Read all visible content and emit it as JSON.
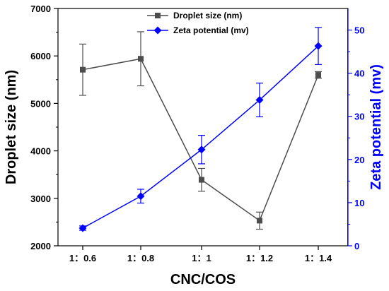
{
  "chart_data": {
    "type": "line",
    "categories": [
      "1：0.6",
      "1：0.8",
      "1：1",
      "1：1.2",
      "1：1.4"
    ],
    "xlabel": "CNC/COS",
    "y_left": {
      "label": "Droplet size (nm)",
      "range": [
        2000,
        7000
      ],
      "ticks": [
        2000,
        3000,
        4000,
        5000,
        6000,
        7000
      ],
      "color": "#000000"
    },
    "y_right": {
      "label": "Zeta potential (mv)",
      "range": [
        0,
        55
      ],
      "ticks": [
        0,
        10,
        20,
        30,
        40,
        50
      ],
      "color": "#0000ff"
    },
    "series": [
      {
        "name": "Droplet size (nm)",
        "axis": "left",
        "color": "#4d4d4d",
        "marker": "square",
        "values": [
          5710,
          5940,
          3390,
          2530,
          5600
        ],
        "errors": [
          540,
          570,
          240,
          180,
          70
        ]
      },
      {
        "name": "Zeta potential (mv)",
        "axis": "right",
        "color": "#0000ff",
        "marker": "diamond",
        "values": [
          4.1,
          11.5,
          22.3,
          33.8,
          46.3
        ],
        "errors": [
          0.5,
          1.6,
          3.3,
          3.9,
          4.3
        ]
      }
    ],
    "legend_position": "top-center",
    "grid": false
  }
}
